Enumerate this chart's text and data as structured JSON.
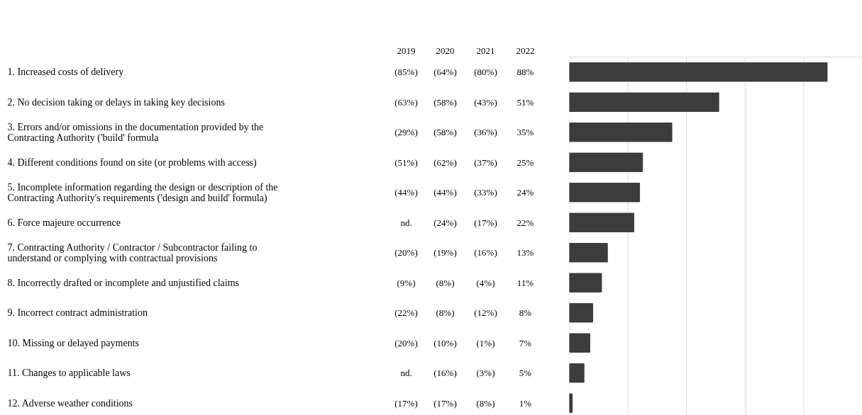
{
  "chart_data": {
    "type": "bar",
    "orientation": "horizontal",
    "categories": [
      "1. Increased costs of delivery",
      "2. No decision taking or delays in taking key decisions",
      "3. Errors and/or omissions in the documentation provided by the Contracting Authority ('build' formula",
      "4. Different conditions found on site (or problems with access)",
      "5. Incomplete information regarding the design or description of the Contracting Authority's requirements ('design and build' formula)",
      "6. Force majeure occurrence",
      "7. Contracting Authority / Contractor / Subcontractor failing to understand or complying with contractual provisions",
      "8. Incorrectly drafted or incomplete and unjustified claims",
      "9. Incorrect contract administration",
      "10. Missing or delayed payments",
      "11. Changes to applicable laws",
      "12. Adverse weather conditions"
    ],
    "series": [
      {
        "name": "2022",
        "color": "#3c3c3c",
        "values": [
          88,
          51,
          35,
          25,
          24,
          22,
          13,
          11,
          8,
          7,
          5,
          1
        ],
        "value_labels": [
          "88%",
          "51%",
          "35%",
          "25%",
          "24%",
          "22%",
          "13%",
          "11%",
          "8%",
          "7%",
          "5%",
          "1%"
        ]
      }
    ],
    "annotations": [
      "2019",
      "(85%)",
      "(63%)",
      "(29%)",
      "(51%)",
      "(44%)",
      "nd.",
      "(20%)",
      "(9%)",
      "(22%)",
      "(20%)",
      "nd.",
      "(17%)",
      "2020",
      "(64%)",
      "(58%)",
      "(58%)",
      "(62%)",
      "(44%)",
      "(24%)",
      "(19%)",
      "(8%)",
      "(8%)",
      "(10%)",
      "(16%)",
      "(17%)",
      "2021",
      "(80%)",
      "(43%)",
      "(36%)",
      "(37%)",
      "(33%)",
      "(17%)",
      "(16%)",
      "(4%)",
      "(12%)",
      "(1%)",
      "(3%)",
      "(8%)"
    ],
    "xlim": [
      0,
      100
    ],
    "xticks": [
      {
        "value": 0,
        "label": null
      },
      {
        "value": 20,
        "label": null
      },
      {
        "value": 40,
        "label": null
      },
      {
        "value": 60,
        "label": null
      },
      {
        "value": 80,
        "label": null
      },
      {
        "value": 100,
        "label": null
      }
    ],
    "grid": "x",
    "tick_labels": false
  }
}
